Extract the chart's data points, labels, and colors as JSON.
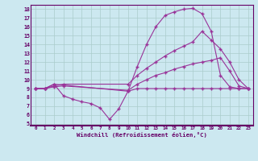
{
  "xlabel": "Windchill (Refroidissement éolien,°C)",
  "bg_color": "#cce8f0",
  "grid_color": "#aacccc",
  "line_color": "#993399",
  "xlim": [
    -0.5,
    23.5
  ],
  "ylim": [
    4.8,
    18.5
  ],
  "yticks": [
    5,
    6,
    7,
    8,
    9,
    10,
    11,
    12,
    13,
    14,
    15,
    16,
    17,
    18
  ],
  "xticks": [
    0,
    1,
    2,
    3,
    4,
    5,
    6,
    7,
    8,
    9,
    10,
    11,
    12,
    13,
    14,
    15,
    16,
    17,
    18,
    19,
    20,
    21,
    22,
    23
  ],
  "curve1_x": [
    0,
    1,
    2,
    10,
    11,
    12,
    13,
    14,
    15,
    16,
    17,
    18,
    19,
    20,
    21,
    22,
    23
  ],
  "curve1_y": [
    9.0,
    9.0,
    9.5,
    8.7,
    11.5,
    14.0,
    16.0,
    17.3,
    17.7,
    18.0,
    18.1,
    17.5,
    15.5,
    10.5,
    9.2,
    9.0,
    9.0
  ],
  "curve2_x": [
    0,
    1,
    2,
    3,
    10,
    11,
    12,
    13,
    14,
    15,
    16,
    17,
    18,
    19,
    20,
    21,
    22,
    23
  ],
  "curve2_y": [
    9.0,
    9.0,
    9.3,
    9.5,
    9.5,
    10.5,
    11.3,
    12.0,
    12.7,
    13.3,
    13.8,
    14.3,
    15.5,
    14.5,
    13.5,
    12.0,
    10.0,
    9.0
  ],
  "curve3_x": [
    0,
    1,
    2,
    3,
    10,
    11,
    12,
    13,
    14,
    15,
    16,
    17,
    18,
    19,
    20,
    21,
    22,
    23
  ],
  "curve3_y": [
    9.0,
    9.0,
    9.2,
    9.3,
    8.8,
    9.5,
    10.0,
    10.5,
    10.8,
    11.2,
    11.5,
    11.8,
    12.0,
    12.2,
    12.5,
    11.0,
    9.3,
    9.0
  ],
  "curve4_x": [
    0,
    1,
    2,
    3,
    4,
    5,
    6,
    7,
    8,
    9,
    10,
    11,
    12,
    13,
    14,
    15,
    16,
    17,
    18,
    19,
    20,
    21,
    22,
    23
  ],
  "curve4_y": [
    9.0,
    9.0,
    9.5,
    8.2,
    7.8,
    7.5,
    7.3,
    6.8,
    5.5,
    6.7,
    8.7,
    9.0,
    9.0,
    9.0,
    9.0,
    9.0,
    9.0,
    9.0,
    9.0,
    9.0,
    9.0,
    9.0,
    9.0,
    9.0
  ]
}
